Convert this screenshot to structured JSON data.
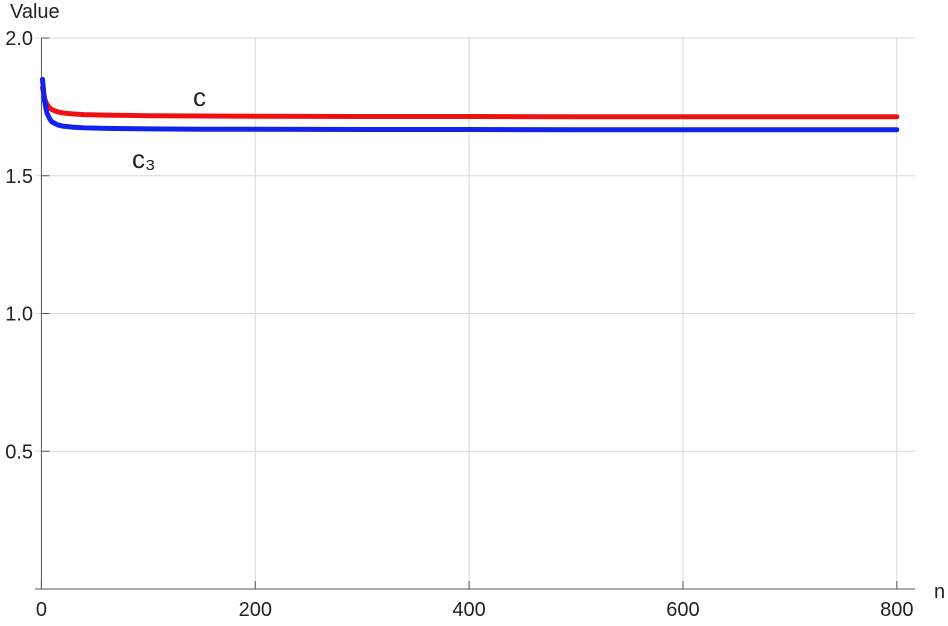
{
  "chart_data": {
    "type": "line",
    "x_label": "n",
    "y_label": "Value",
    "x": [
      1,
      2,
      3,
      4,
      5,
      6,
      8,
      10,
      15,
      20,
      30,
      40,
      60,
      80,
      100,
      150,
      200,
      300,
      400,
      500,
      600,
      700,
      800
    ],
    "series": [
      {
        "name": "c",
        "color": "#ee1111",
        "values": [
          1.82,
          1.8,
          1.78,
          1.77,
          1.76,
          1.755,
          1.745,
          1.74,
          1.732,
          1.728,
          1.724,
          1.722,
          1.72,
          1.719,
          1.718,
          1.717,
          1.716,
          1.715,
          1.715,
          1.714,
          1.714,
          1.714,
          1.714
        ]
      },
      {
        "name": "c₃",
        "color": "#1122ee",
        "values": [
          1.85,
          1.81,
          1.77,
          1.75,
          1.73,
          1.72,
          1.705,
          1.695,
          1.685,
          1.68,
          1.676,
          1.674,
          1.672,
          1.671,
          1.67,
          1.669,
          1.669,
          1.668,
          1.668,
          1.667,
          1.667,
          1.667,
          1.667
        ]
      }
    ],
    "xlim": [
      -6,
      817
    ],
    "ylim": [
      0,
      2
    ],
    "xticks": [
      0,
      200,
      400,
      600,
      800
    ],
    "yticks": [
      0.5,
      {
        "value": 1,
        "label": "1.0"
      },
      1.5,
      {
        "value": 2,
        "label": "2.0"
      }
    ],
    "grid": true
  }
}
